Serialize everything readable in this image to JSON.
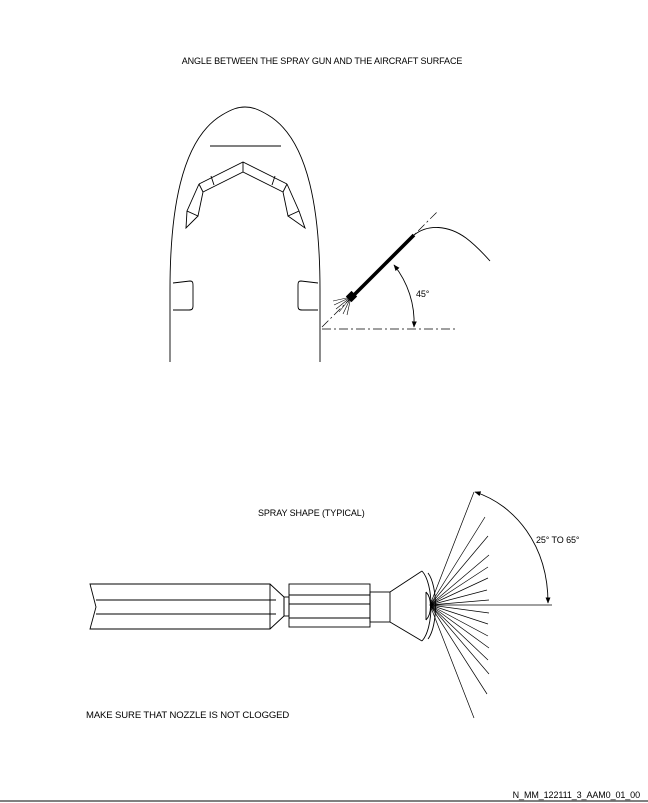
{
  "diagram": {
    "title_angle": "ANGLE BETWEEN THE SPRAY GUN AND THE AIRCRAFT SURFACE",
    "angle_label": "45°",
    "title_shape": "SPRAY SHAPE (TYPICAL)",
    "range_label": "25° TO 65°",
    "note": "MAKE SURE THAT NOZZLE IS NOT CLOGGED",
    "reference": "N_MM_122111_3_AAM0_01_00"
  },
  "colors": {
    "ink": "#000000",
    "background": "#ffffff"
  }
}
